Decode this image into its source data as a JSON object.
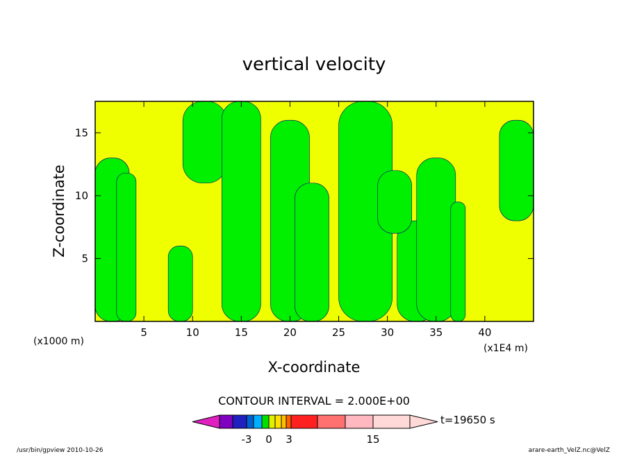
{
  "chart_data": {
    "type": "heatmap",
    "title": "vertical velocity",
    "xlabel": "X-coordinate",
    "ylabel": "Z-coordinate",
    "x_unit": "(x1E4 m)",
    "y_unit": "(x1000 m)",
    "xlim": [
      0,
      45
    ],
    "ylim": [
      0,
      17.5
    ],
    "x_ticks": [
      5,
      10,
      15,
      20,
      25,
      30,
      35,
      40
    ],
    "y_ticks": [
      5,
      10,
      15
    ],
    "contour_interval_text": "CONTOUR INTERVAL = 2.000E+00",
    "time_label": "t=19650 s",
    "colorbar": {
      "levels": [
        -3,
        0,
        3,
        15
      ],
      "tick_labels": [
        "-3",
        "0",
        "3",
        "15"
      ],
      "colors": [
        "#e020c0",
        "#8000c0",
        "#2020c0",
        "#0060d0",
        "#00b0ff",
        "#00e000",
        "#e0f000",
        "#ffe000",
        "#ffc000",
        "#ff6000",
        "#ff2020",
        "#ff7070",
        "#ffb8c0",
        "#ffd8d8"
      ]
    },
    "fill_colors": {
      "positive": "#f0ff00",
      "negative": "#00f000",
      "line": "#000080"
    },
    "green_regions": [
      {
        "x": [
          0,
          3.5
        ],
        "z": [
          0,
          13
        ]
      },
      {
        "x": [
          2.2,
          4.2
        ],
        "z": [
          0,
          11.8
        ]
      },
      {
        "x": [
          7.5,
          10
        ],
        "z": [
          0,
          6
        ]
      },
      {
        "x": [
          9,
          13.5
        ],
        "z": [
          11,
          17.5
        ]
      },
      {
        "x": [
          13,
          17
        ],
        "z": [
          0,
          17.5
        ]
      },
      {
        "x": [
          18,
          22
        ],
        "z": [
          0,
          16
        ]
      },
      {
        "x": [
          20.5,
          24
        ],
        "z": [
          0,
          11
        ]
      },
      {
        "x": [
          25,
          30.5
        ],
        "z": [
          0,
          17.5
        ]
      },
      {
        "x": [
          31,
          35
        ],
        "z": [
          0,
          8
        ]
      },
      {
        "x": [
          29,
          32.5
        ],
        "z": [
          7,
          12
        ]
      },
      {
        "x": [
          33,
          37
        ],
        "z": [
          0,
          13
        ]
      },
      {
        "x": [
          36.5,
          38
        ],
        "z": [
          0,
          9.5
        ]
      },
      {
        "x": [
          41.5,
          45
        ],
        "z": [
          8,
          16
        ]
      }
    ]
  },
  "footer": {
    "left": "/usr/bin/gpview   2010-10-26",
    "right": "arare-earth_VelZ.nc@VelZ"
  }
}
